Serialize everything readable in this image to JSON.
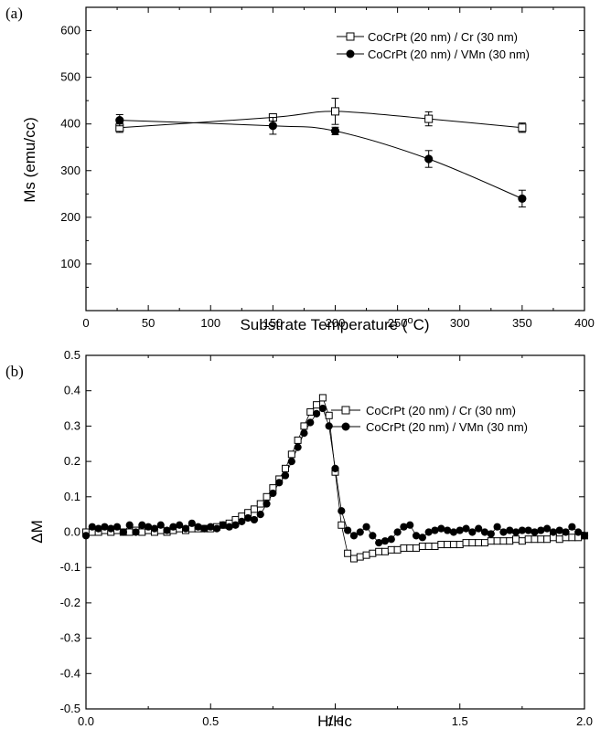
{
  "chart_data": [
    {
      "panel_label": "(a)",
      "type": "line",
      "xlabel": "Substrate Temperature (°C)",
      "xlabel_parts": {
        "main": "Substrate Temperature (",
        "sup": "o",
        "tail": "C)"
      },
      "ylabel": "Ms (emu/cc)",
      "xlim": [
        0,
        400
      ],
      "ylim": [
        0,
        650
      ],
      "xticks": [
        0,
        50,
        100,
        150,
        200,
        250,
        300,
        350,
        400
      ],
      "yticks": [
        100,
        200,
        300,
        400,
        500,
        600
      ],
      "grid": false,
      "legend_position": "top-right",
      "series": [
        {
          "name": "CoCrPt (20 nm) / Cr (30 nm)",
          "marker": "open-square",
          "x": [
            27,
            150,
            200,
            275,
            350
          ],
          "y": [
            392,
            414,
            427,
            411,
            392
          ],
          "err": [
            10,
            5,
            28,
            15,
            10
          ]
        },
        {
          "name": "CoCrPt (20 nm) / VMn (30 nm)",
          "marker": "filled-circle",
          "x": [
            27,
            150,
            200,
            275,
            350
          ],
          "y": [
            408,
            396,
            385,
            325,
            240
          ],
          "err": [
            12,
            18,
            8,
            18,
            18
          ]
        }
      ]
    },
    {
      "panel_label": "(b)",
      "type": "scatter",
      "xlabel": "H/Hc",
      "ylabel": "ΔM",
      "xlim": [
        0,
        2.0
      ],
      "ylim": [
        -0.5,
        0.5
      ],
      "xticks": [
        "0.0",
        "0.5",
        "1.0",
        "1.5",
        "2.0"
      ],
      "yticks": [
        "-0.5",
        "-0.4",
        "-0.3",
        "-0.2",
        "-0.1",
        "0.0",
        "0.1",
        "0.2",
        "0.3",
        "0.4",
        "0.5"
      ],
      "grid": false,
      "legend_position": "top-right",
      "series": [
        {
          "name": "CoCrPt (20 nm) / Cr (30 nm)",
          "marker": "open-square",
          "connected": true,
          "x": [
            0.0,
            0.025,
            0.05,
            0.075,
            0.1,
            0.125,
            0.15,
            0.175,
            0.2,
            0.225,
            0.25,
            0.275,
            0.3,
            0.325,
            0.35,
            0.375,
            0.4,
            0.425,
            0.45,
            0.475,
            0.5,
            0.525,
            0.55,
            0.575,
            0.6,
            0.625,
            0.65,
            0.675,
            0.7,
            0.725,
            0.75,
            0.775,
            0.8,
            0.825,
            0.85,
            0.875,
            0.9,
            0.925,
            0.95,
            0.975,
            1.0,
            1.025,
            1.05,
            1.075,
            1.1,
            1.125,
            1.15,
            1.175,
            1.2,
            1.225,
            1.25,
            1.275,
            1.3,
            1.325,
            1.35,
            1.375,
            1.4,
            1.425,
            1.45,
            1.475,
            1.5,
            1.525,
            1.55,
            1.575,
            1.6,
            1.625,
            1.65,
            1.675,
            1.7,
            1.725,
            1.75,
            1.775,
            1.8,
            1.825,
            1.85,
            1.875,
            1.9,
            1.925,
            1.95,
            1.975,
            2.0
          ],
          "y": [
            0.0,
            0.0,
            0.0,
            0.005,
            0.0,
            0.005,
            0.0,
            0.0,
            0.005,
            0.0,
            0.005,
            0.0,
            0.005,
            0.0,
            0.005,
            0.01,
            0.005,
            0.01,
            0.01,
            0.01,
            0.01,
            0.015,
            0.02,
            0.025,
            0.035,
            0.045,
            0.055,
            0.065,
            0.08,
            0.1,
            0.125,
            0.15,
            0.18,
            0.22,
            0.26,
            0.3,
            0.34,
            0.36,
            0.38,
            0.33,
            0.17,
            0.02,
            -0.06,
            -0.075,
            -0.07,
            -0.065,
            -0.06,
            -0.055,
            -0.055,
            -0.05,
            -0.05,
            -0.045,
            -0.045,
            -0.045,
            -0.04,
            -0.04,
            -0.04,
            -0.035,
            -0.035,
            -0.035,
            -0.035,
            -0.03,
            -0.03,
            -0.03,
            -0.03,
            -0.025,
            -0.025,
            -0.025,
            -0.025,
            -0.02,
            -0.025,
            -0.02,
            -0.02,
            -0.02,
            -0.02,
            -0.015,
            -0.02,
            -0.015,
            -0.015,
            -0.015,
            -0.01
          ]
        },
        {
          "name": "CoCrPt (20 nm) / VMn (30 nm)",
          "marker": "filled-circle",
          "connected": true,
          "x": [
            0.0,
            0.025,
            0.05,
            0.075,
            0.1,
            0.125,
            0.15,
            0.175,
            0.2,
            0.225,
            0.25,
            0.275,
            0.3,
            0.325,
            0.35,
            0.375,
            0.4,
            0.425,
            0.45,
            0.475,
            0.5,
            0.525,
            0.55,
            0.575,
            0.6,
            0.625,
            0.65,
            0.675,
            0.7,
            0.725,
            0.75,
            0.775,
            0.8,
            0.825,
            0.85,
            0.875,
            0.9,
            0.925,
            0.95,
            0.975,
            1.0,
            1.025,
            1.05,
            1.075,
            1.1,
            1.125,
            1.15,
            1.175,
            1.2,
            1.225,
            1.25,
            1.275,
            1.3,
            1.325,
            1.35,
            1.375,
            1.4,
            1.425,
            1.45,
            1.475,
            1.5,
            1.525,
            1.55,
            1.575,
            1.6,
            1.625,
            1.65,
            1.675,
            1.7,
            1.725,
            1.75,
            1.775,
            1.8,
            1.825,
            1.85,
            1.875,
            1.9,
            1.925,
            1.95,
            1.975,
            2.0
          ],
          "y": [
            -0.01,
            0.015,
            0.01,
            0.015,
            0.01,
            0.015,
            0.0,
            0.02,
            0.0,
            0.02,
            0.015,
            0.01,
            0.02,
            0.005,
            0.015,
            0.02,
            0.01,
            0.025,
            0.015,
            0.01,
            0.015,
            0.01,
            0.02,
            0.015,
            0.02,
            0.03,
            0.04,
            0.035,
            0.05,
            0.08,
            0.11,
            0.14,
            0.16,
            0.2,
            0.24,
            0.28,
            0.31,
            0.335,
            0.35,
            0.3,
            0.18,
            0.06,
            0.005,
            -0.01,
            0.0,
            0.015,
            -0.01,
            -0.03,
            -0.025,
            -0.02,
            0.0,
            0.015,
            0.02,
            -0.01,
            -0.015,
            0.0,
            0.005,
            0.01,
            0.005,
            0.0,
            0.005,
            0.01,
            0.0,
            0.01,
            0.0,
            -0.005,
            0.015,
            0.0,
            0.005,
            0.0,
            0.005,
            0.005,
            0.0,
            0.005,
            0.01,
            0.0,
            0.005,
            0.0,
            0.015,
            0.0,
            -0.01
          ]
        }
      ]
    }
  ]
}
